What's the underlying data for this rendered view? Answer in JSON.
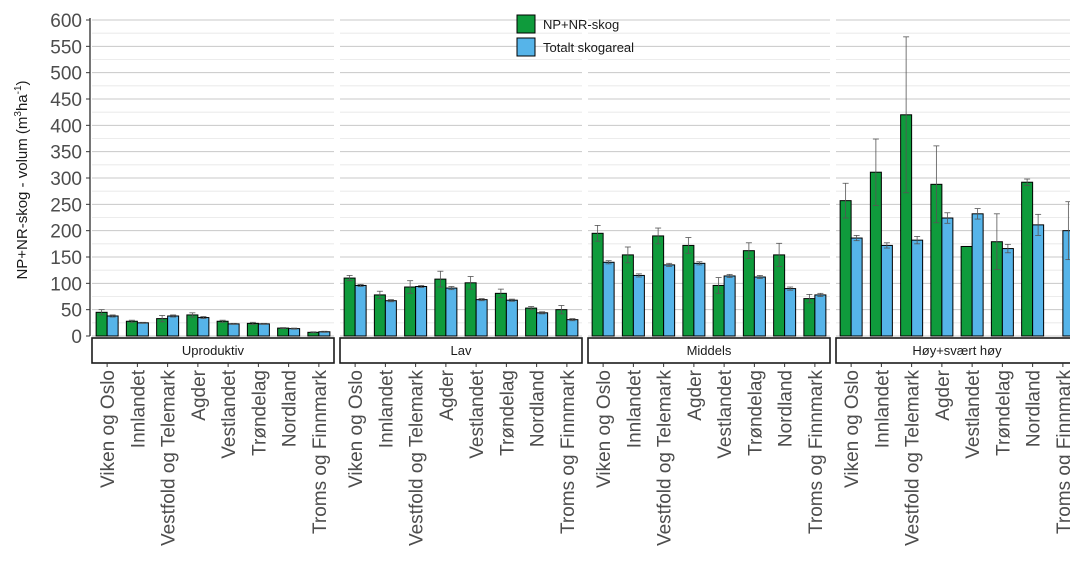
{
  "chart_data": {
    "type": "bar",
    "ylabel_main": "NP+NR-skog - volum (",
    "ylabel_unit": "m",
    "ylabel_sup1": "3",
    "ylabel_mid": "ha",
    "ylabel_sup2": "-1",
    "ylabel_end": ")",
    "ylim": [
      0,
      600
    ],
    "yticks": [
      0,
      50,
      100,
      150,
      200,
      250,
      300,
      350,
      400,
      450,
      500,
      550,
      600
    ],
    "categories": [
      "Viken og Oslo",
      "Innlandet",
      "Vestfold og Telemark",
      "Agder",
      "Vestlandet",
      "Trøndelag",
      "Nordland",
      "Troms og Finnmark"
    ],
    "series_colors": [
      "#0f9b3c",
      "#56b4e9"
    ],
    "legend": {
      "items": [
        {
          "label": "NP+NR-skog",
          "color": "#0f9b3c"
        },
        {
          "label": "Totalt skogareal",
          "color": "#56b4e9"
        }
      ]
    },
    "panels": [
      {
        "label": "Uproduktiv",
        "series": [
          {
            "values": [
              45,
              28,
              33,
              40,
              28,
              24,
              15,
              7
            ],
            "err": [
              5,
              2,
              6,
              4,
              2,
              2,
              1,
              1
            ]
          },
          {
            "values": [
              38,
              25,
              38,
              35,
              23,
              23,
              14,
              8
            ],
            "err": [
              2,
              1,
              2,
              2,
              1,
              1,
              1,
              1
            ]
          }
        ]
      },
      {
        "label": "Lav",
        "series": [
          {
            "values": [
              110,
              78,
              93,
              108,
              101,
              81,
              53,
              50
            ],
            "err": [
              5,
              7,
              12,
              15,
              12,
              8,
              3,
              8
            ]
          },
          {
            "values": [
              96,
              67,
              94,
              91,
              69,
              68,
              44,
              31
            ],
            "err": [
              2,
              2,
              2,
              3,
              2,
              2,
              2,
              2
            ]
          }
        ]
      },
      {
        "label": "Middels",
        "series": [
          {
            "values": [
              195,
              154,
              190,
              172,
              96,
              162,
              154,
              71
            ],
            "err": [
              15,
              15,
              15,
              15,
              15,
              15,
              22,
              8
            ]
          },
          {
            "values": [
              140,
              115,
              135,
              138,
              114,
              112,
              90,
              78
            ],
            "err": [
              3,
              3,
              3,
              3,
              3,
              3,
              3,
              3
            ]
          }
        ]
      },
      {
        "label": "Høy+svært høy",
        "series": [
          {
            "values": [
              257,
              311,
              420,
              288,
              170,
              179,
              292,
              0
            ],
            "err": [
              33,
              63,
              148,
              73,
              0,
              53,
              6,
              0
            ]
          },
          {
            "values": [
              186,
              172,
              182,
              224,
              232,
              166,
              211,
              200
            ],
            "err": [
              5,
              5,
              7,
              10,
              10,
              8,
              20,
              55
            ]
          }
        ]
      }
    ]
  }
}
